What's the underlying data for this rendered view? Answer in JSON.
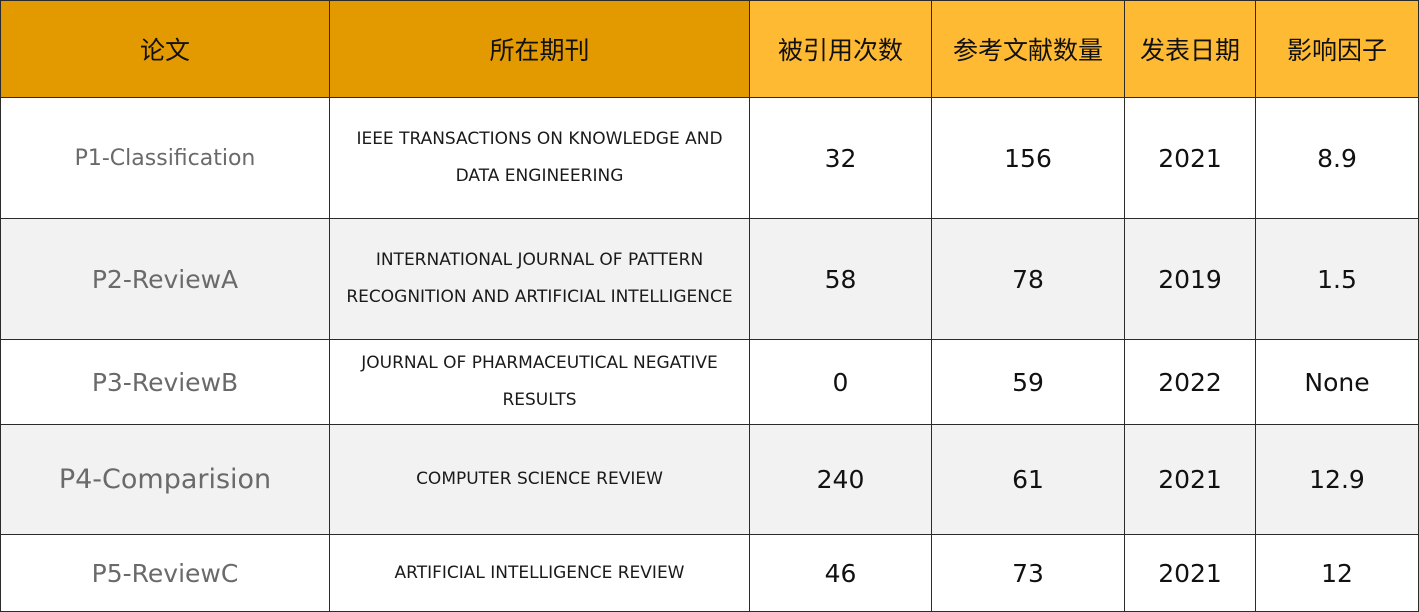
{
  "table": {
    "headers": [
      "论文",
      "所在期刊",
      "被引用次数",
      "参考文献数量",
      "发表日期",
      "影响因子"
    ],
    "rows": [
      {
        "paper": "P1-Classification",
        "journal": "IEEE TRANSACTIONS ON KNOWLEDGE AND DATA ENGINEERING",
        "citations": "32",
        "references": "156",
        "date": "2021",
        "impact": "8.9"
      },
      {
        "paper": "P2-ReviewA",
        "journal": "INTERNATIONAL JOURNAL OF PATTERN RECOGNITION AND ARTIFICIAL INTELLIGENCE",
        "citations": "58",
        "references": "78",
        "date": "2019",
        "impact": "1.5"
      },
      {
        "paper": "P3-ReviewB",
        "journal": "JOURNAL OF PHARMACEUTICAL NEGATIVE RESULTS",
        "citations": "0",
        "references": "59",
        "date": "2022",
        "impact": "None"
      },
      {
        "paper": "P4-Comparision",
        "journal": "COMPUTER SCIENCE REVIEW",
        "citations": "240",
        "references": "61",
        "date": "2021",
        "impact": "12.9"
      },
      {
        "paper": "P5-ReviewC",
        "journal": "ARTIFICIAL INTELLIGENCE REVIEW",
        "citations": "46",
        "references": "73",
        "date": "2021",
        "impact": "12"
      }
    ]
  },
  "colors": {
    "header_dark": "#e39a00",
    "header_light": "#ffba33",
    "row_alt": "#f2f2f2",
    "border": "#2b2b2b"
  }
}
